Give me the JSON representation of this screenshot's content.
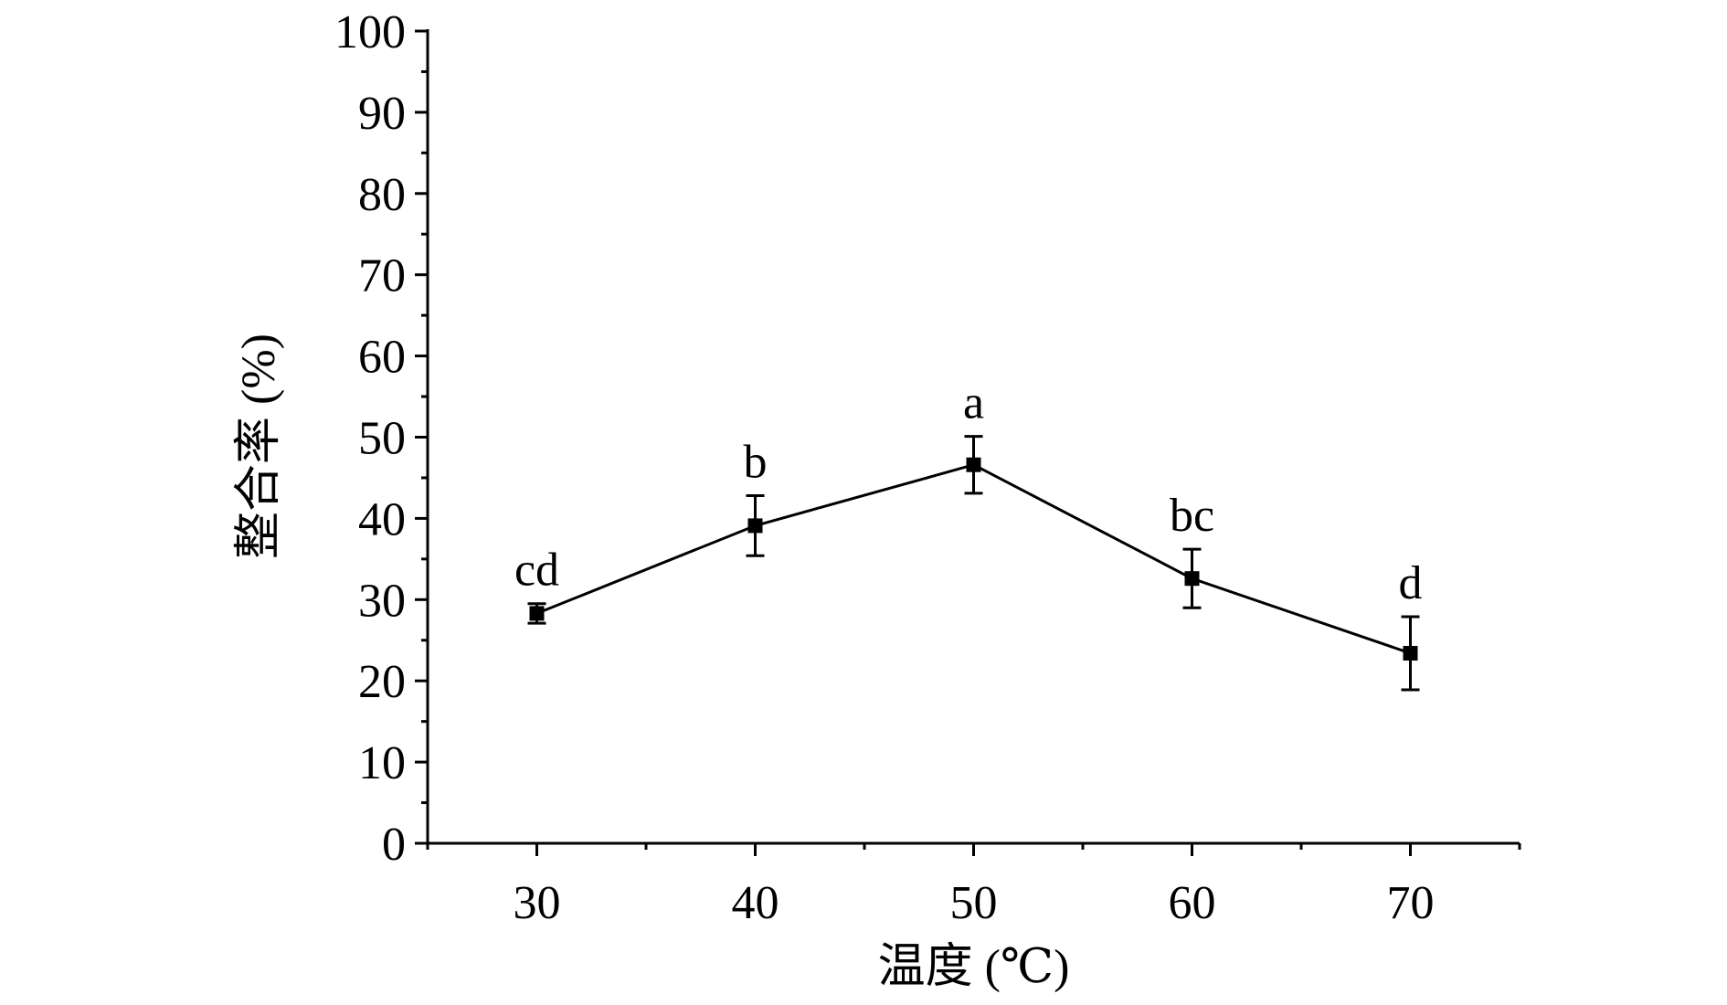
{
  "chart_data": {
    "type": "line",
    "title": "",
    "xlabel": "温度 (℃)",
    "ylabel": "整合率 (%)",
    "xlim": [
      25,
      75
    ],
    "ylim": [
      0,
      100
    ],
    "x_ticks": [
      30,
      40,
      50,
      60,
      70
    ],
    "y_ticks": [
      0,
      10,
      20,
      30,
      40,
      50,
      60,
      70,
      80,
      90,
      100
    ],
    "grid": false,
    "series": [
      {
        "x": [
          30,
          40,
          50,
          60,
          70
        ],
        "y": [
          28.3,
          39.1,
          46.6,
          32.6,
          23.4
        ],
        "error": [
          1.2,
          3.7,
          3.5,
          3.6,
          4.5
        ],
        "labels": [
          "cd",
          "b",
          "a",
          "bc",
          "d"
        ],
        "color": "#000000",
        "marker": "square"
      }
    ]
  }
}
